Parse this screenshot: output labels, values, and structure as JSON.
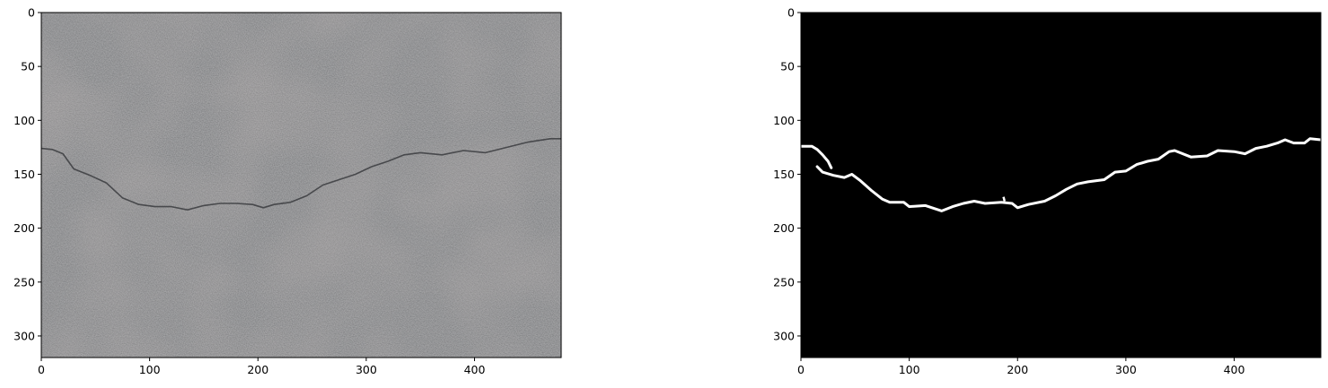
{
  "chart_data": [
    {
      "type": "image",
      "panel": "photo",
      "description_visual": "grey asphalt surface with a thin dark crack",
      "x_ticks": [
        0,
        100,
        200,
        300,
        400
      ],
      "y_ticks": [
        0,
        50,
        100,
        150,
        200,
        250,
        300
      ],
      "xlim": [
        0,
        480
      ],
      "ylim": [
        320,
        0
      ],
      "crack_path": [
        [
          0,
          126
        ],
        [
          10,
          127
        ],
        [
          20,
          131
        ],
        [
          30,
          145
        ],
        [
          45,
          151
        ],
        [
          60,
          158
        ],
        [
          75,
          172
        ],
        [
          90,
          178
        ],
        [
          105,
          180
        ],
        [
          120,
          180
        ],
        [
          135,
          183
        ],
        [
          150,
          179
        ],
        [
          165,
          177
        ],
        [
          180,
          177
        ],
        [
          195,
          178
        ],
        [
          205,
          181
        ],
        [
          215,
          178
        ],
        [
          230,
          176
        ],
        [
          245,
          170
        ],
        [
          260,
          160
        ],
        [
          275,
          155
        ],
        [
          290,
          150
        ],
        [
          305,
          143
        ],
        [
          320,
          138
        ],
        [
          335,
          132
        ],
        [
          350,
          130
        ],
        [
          370,
          132
        ],
        [
          390,
          128
        ],
        [
          410,
          130
        ],
        [
          430,
          125
        ],
        [
          450,
          120
        ],
        [
          470,
          117
        ],
        [
          480,
          117
        ]
      ],
      "colors": {
        "surface": "#7e7f81",
        "crack": "#3c3d40"
      }
    },
    {
      "type": "image",
      "panel": "mask",
      "x_ticks": [
        0,
        100,
        200,
        300,
        400
      ],
      "y_ticks": [
        0,
        50,
        100,
        150,
        200,
        250,
        300
      ],
      "xlim": [
        0,
        480
      ],
      "ylim": [
        320,
        0
      ],
      "mask_path": [
        [
          0,
          124
        ],
        [
          10,
          124
        ],
        [
          15,
          127
        ],
        [
          20,
          132
        ],
        [
          25,
          138
        ],
        [
          28,
          144
        ]
      ],
      "mask_path_2": [
        [
          15,
          143
        ],
        [
          20,
          148
        ],
        [
          30,
          151
        ],
        [
          40,
          153
        ],
        [
          47,
          150
        ],
        [
          55,
          156
        ],
        [
          65,
          165
        ],
        [
          75,
          173
        ],
        [
          82,
          176
        ],
        [
          95,
          176
        ],
        [
          100,
          180
        ],
        [
          115,
          179
        ],
        [
          130,
          184
        ],
        [
          140,
          180
        ],
        [
          150,
          177
        ],
        [
          160,
          175
        ],
        [
          170,
          177
        ],
        [
          185,
          176
        ],
        [
          195,
          177
        ],
        [
          200,
          181
        ],
        [
          210,
          178
        ],
        [
          225,
          175
        ],
        [
          235,
          170
        ],
        [
          245,
          164
        ],
        [
          255,
          159
        ],
        [
          265,
          157
        ],
        [
          280,
          155
        ],
        [
          290,
          148
        ],
        [
          300,
          147
        ],
        [
          310,
          141
        ],
        [
          320,
          138
        ],
        [
          330,
          136
        ],
        [
          340,
          129
        ],
        [
          345,
          128
        ],
        [
          360,
          134
        ],
        [
          375,
          133
        ],
        [
          385,
          128
        ],
        [
          400,
          129
        ],
        [
          410,
          131
        ],
        [
          420,
          126
        ],
        [
          430,
          124
        ],
        [
          440,
          121
        ],
        [
          447,
          118
        ],
        [
          455,
          121
        ],
        [
          465,
          121
        ],
        [
          470,
          117
        ],
        [
          480,
          118
        ]
      ],
      "mask_extras": [
        [
          187,
          171
        ],
        [
          188,
          175
        ]
      ],
      "colors": {
        "background": "#000000",
        "crack": "#ffffff"
      }
    }
  ]
}
